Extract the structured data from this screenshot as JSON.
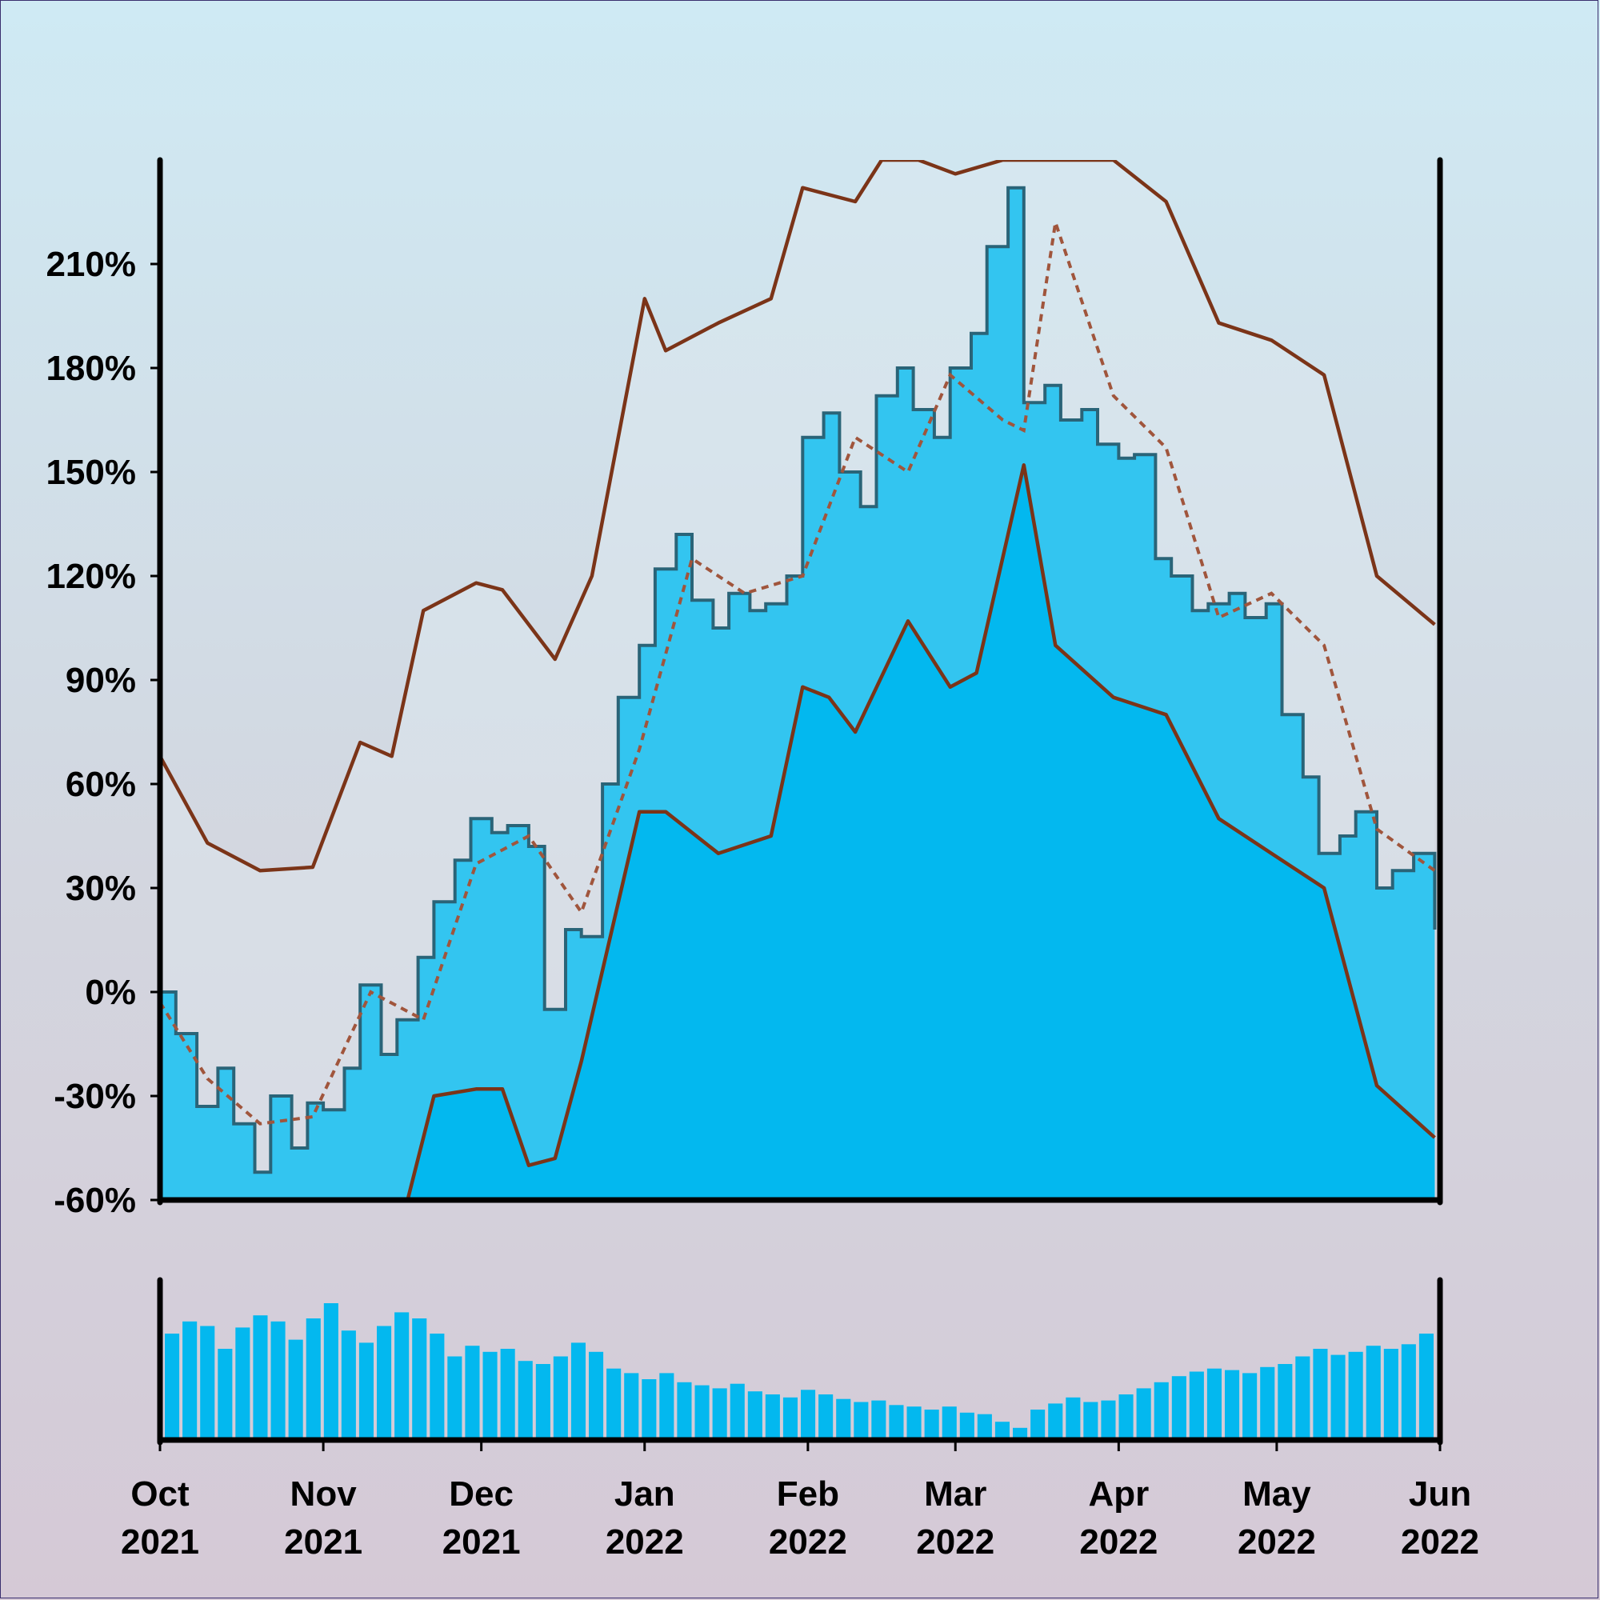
{
  "chart_data": [
    {
      "type": "area",
      "panel": "price",
      "yticks": [
        "-60%",
        "-30%",
        "0%",
        "30%",
        "60%",
        "90%",
        "120%",
        "150%",
        "180%",
        "210%"
      ],
      "ytick_values": [
        -60,
        -30,
        0,
        30,
        60,
        90,
        120,
        150,
        180,
        210
      ],
      "ylim": [
        -60,
        240
      ],
      "xlim": [
        "2021-10-01",
        "2022-06-01"
      ],
      "xticks": [
        {
          "month": "Oct",
          "year": "2021",
          "date": "2021-10-01"
        },
        {
          "month": "Nov",
          "year": "2021",
          "date": "2021-11-01"
        },
        {
          "month": "Dec",
          "year": "2021",
          "date": "2021-12-01"
        },
        {
          "month": "Jan",
          "year": "2022",
          "date": "2022-01-01"
        },
        {
          "month": "Feb",
          "year": "2022",
          "date": "2022-02-01"
        },
        {
          "month": "Mar",
          "year": "2022",
          "date": "2022-03-01"
        },
        {
          "month": "Apr",
          "year": "2022",
          "date": "2022-04-01"
        },
        {
          "month": "May",
          "year": "2022",
          "date": "2022-05-01"
        },
        {
          "month": "Jun",
          "year": "2022",
          "date": "2022-06-01"
        }
      ],
      "grid": false,
      "colors": {
        "fill_light": "#33c5f0",
        "fill_dark": "#03b8ef",
        "price_line": "#2a6478",
        "band_line": "#7b3418",
        "ma_line": "#a0553c",
        "bg_band": "#dde8f0"
      },
      "series": [
        {
          "key": "price",
          "style": "step line with light fill",
          "x": [
            "2021-10-01",
            "2021-10-04",
            "2021-10-08",
            "2021-10-12",
            "2021-10-15",
            "2021-10-19",
            "2021-10-22",
            "2021-10-26",
            "2021-10-29",
            "2021-11-01",
            "2021-11-05",
            "2021-11-08",
            "2021-11-12",
            "2021-11-15",
            "2021-11-19",
            "2021-11-22",
            "2021-11-26",
            "2021-11-29",
            "2021-12-03",
            "2021-12-06",
            "2021-12-10",
            "2021-12-13",
            "2021-12-17",
            "2021-12-20",
            "2021-12-24",
            "2021-12-27",
            "2021-12-31",
            "2022-01-03",
            "2022-01-07",
            "2022-01-10",
            "2022-01-14",
            "2022-01-17",
            "2022-01-21",
            "2022-01-24",
            "2022-01-28",
            "2022-01-31",
            "2022-02-04",
            "2022-02-07",
            "2022-02-11",
            "2022-02-14",
            "2022-02-18",
            "2022-02-21",
            "2022-02-25",
            "2022-02-28",
            "2022-03-04",
            "2022-03-07",
            "2022-03-11",
            "2022-03-14",
            "2022-03-18",
            "2022-03-21",
            "2022-03-25",
            "2022-03-28",
            "2022-04-01",
            "2022-04-04",
            "2022-04-08",
            "2022-04-11",
            "2022-04-15",
            "2022-04-18",
            "2022-04-22",
            "2022-04-25",
            "2022-04-29",
            "2022-05-02",
            "2022-05-06",
            "2022-05-09",
            "2022-05-13",
            "2022-05-16",
            "2022-05-20",
            "2022-05-23",
            "2022-05-27",
            "2022-05-31"
          ],
          "y": [
            0,
            -12,
            -33,
            -22,
            -38,
            -52,
            -30,
            -45,
            -32,
            -34,
            -22,
            2,
            -18,
            -8,
            10,
            26,
            38,
            50,
            46,
            48,
            42,
            -5,
            18,
            16,
            60,
            85,
            100,
            122,
            132,
            113,
            105,
            115,
            110,
            112,
            120,
            160,
            167,
            150,
            140,
            172,
            180,
            168,
            160,
            180,
            190,
            215,
            232,
            170,
            175,
            165,
            168,
            158,
            154,
            155,
            125,
            120,
            110,
            112,
            115,
            108,
            112,
            80,
            62,
            40,
            45,
            52,
            30,
            35,
            40,
            18
          ],
          "notes": "Min ~-57% mid-Oct 2021, peak ~235% mid-Mar 2022"
        },
        {
          "key": "moving_average",
          "style": "dashed",
          "x": [
            "2021-10-01",
            "2021-10-10",
            "2021-10-20",
            "2021-10-30",
            "2021-11-10",
            "2021-11-20",
            "2021-11-30",
            "2021-12-10",
            "2021-12-20",
            "2021-12-31",
            "2022-01-10",
            "2022-01-20",
            "2022-01-31",
            "2022-02-10",
            "2022-02-20",
            "2022-02-28",
            "2022-03-10",
            "2022-03-14",
            "2022-03-20",
            "2022-03-31",
            "2022-04-10",
            "2022-04-20",
            "2022-04-30",
            "2022-05-10",
            "2022-05-20",
            "2022-05-31"
          ],
          "y": [
            -3,
            -25,
            -38,
            -36,
            0,
            -8,
            37,
            45,
            23,
            70,
            125,
            115,
            120,
            160,
            150,
            178,
            165,
            162,
            222,
            172,
            157,
            108,
            115,
            100,
            47,
            35
          ]
        },
        {
          "key": "upper_band",
          "style": "solid",
          "x": [
            "2021-10-01",
            "2021-10-10",
            "2021-10-20",
            "2021-10-30",
            "2021-11-08",
            "2021-11-14",
            "2021-11-20",
            "2021-11-30",
            "2021-12-05",
            "2021-12-15",
            "2021-12-22",
            "2022-01-01",
            "2022-01-05",
            "2022-01-15",
            "2022-01-25",
            "2022-01-31",
            "2022-02-10",
            "2022-02-15",
            "2022-02-22",
            "2022-03-01",
            "2022-03-10",
            "2022-03-20",
            "2022-03-31",
            "2022-04-10",
            "2022-04-20",
            "2022-04-30",
            "2022-05-10",
            "2022-05-20",
            "2022-05-31"
          ],
          "y": [
            68,
            43,
            35,
            36,
            72,
            68,
            110,
            118,
            116,
            96,
            120,
            200,
            185,
            193,
            200,
            232,
            228,
            240,
            240,
            236,
            240,
            240,
            240,
            228,
            193,
            188,
            178,
            120,
            106
          ]
        },
        {
          "key": "lower_band",
          "style": "solid with dark fill",
          "x": [
            "2021-11-17",
            "2021-11-22",
            "2021-11-30",
            "2021-12-05",
            "2021-12-10",
            "2021-12-15",
            "2021-12-20",
            "2021-12-31",
            "2022-01-05",
            "2022-01-15",
            "2022-01-25",
            "2022-01-31",
            "2022-02-05",
            "2022-02-10",
            "2022-02-20",
            "2022-02-28",
            "2022-03-05",
            "2022-03-14",
            "2022-03-20",
            "2022-03-31",
            "2022-04-10",
            "2022-04-20",
            "2022-04-30",
            "2022-05-10",
            "2022-05-20",
            "2022-05-31"
          ],
          "y": [
            -60,
            -30,
            -28,
            -28,
            -50,
            -48,
            -20,
            52,
            52,
            40,
            45,
            88,
            85,
            75,
            107,
            88,
            92,
            152,
            100,
            85,
            80,
            50,
            40,
            30,
            -27,
            -42
          ]
        }
      ]
    },
    {
      "type": "bar",
      "panel": "volume",
      "color": "#03b8ef",
      "values_relative": [
        0.7,
        0.78,
        0.75,
        0.6,
        0.74,
        0.82,
        0.78,
        0.66,
        0.8,
        0.9,
        0.72,
        0.64,
        0.75,
        0.84,
        0.8,
        0.7,
        0.55,
        0.62,
        0.58,
        0.6,
        0.52,
        0.5,
        0.55,
        0.64,
        0.58,
        0.47,
        0.44,
        0.4,
        0.44,
        0.38,
        0.36,
        0.34,
        0.37,
        0.32,
        0.3,
        0.28,
        0.33,
        0.3,
        0.27,
        0.25,
        0.26,
        0.23,
        0.22,
        0.2,
        0.22,
        0.18,
        0.17,
        0.12,
        0.08,
        0.2,
        0.24,
        0.28,
        0.25,
        0.26,
        0.3,
        0.34,
        0.38,
        0.42,
        0.45,
        0.47,
        0.46,
        0.44,
        0.48,
        0.5,
        0.55,
        0.6,
        0.56,
        0.58,
        0.62,
        0.6,
        0.63,
        0.7
      ]
    }
  ]
}
